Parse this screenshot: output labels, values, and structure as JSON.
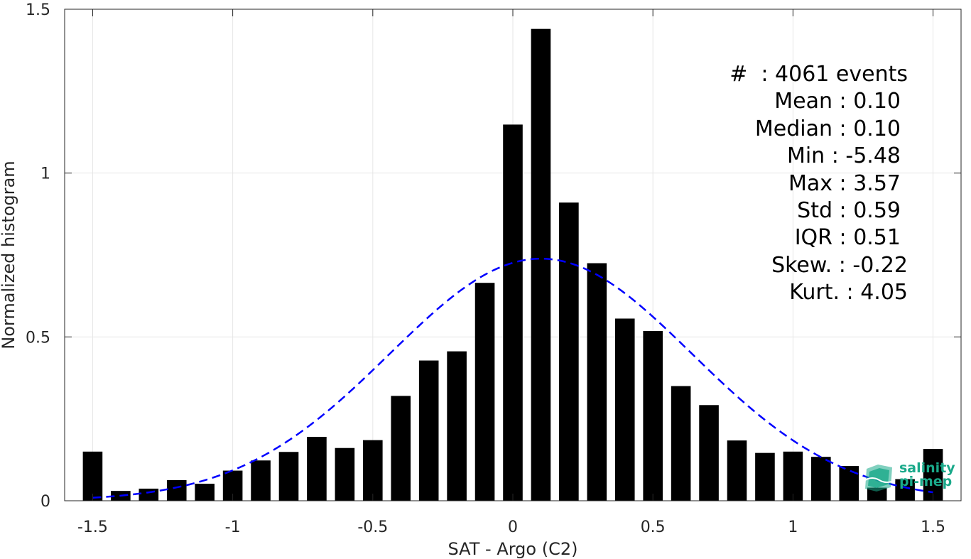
{
  "chart_data": {
    "type": "bar",
    "xlabel": "SAT - Argo (C2)",
    "ylabel": "Normalized histogram",
    "xlim": [
      -1.6,
      1.6
    ],
    "ylim": [
      0,
      1.5
    ],
    "xticks": [
      -1.5,
      -1,
      -0.5,
      0,
      0.5,
      1,
      1.5
    ],
    "xtick_labels": [
      "-1.5",
      "-1",
      "-0.5",
      "0",
      "0.5",
      "1",
      "1.5"
    ],
    "yticks": [
      0,
      0.5,
      1,
      1.5
    ],
    "ytick_labels": [
      "0",
      "0.5",
      "1",
      "1.5"
    ],
    "grid": true,
    "bar_width": 0.07,
    "bar_color": "#000000",
    "x": [
      -1.5,
      -1.4,
      -1.3,
      -1.2,
      -1.1,
      -1.0,
      -0.9,
      -0.8,
      -0.7,
      -0.6,
      -0.5,
      -0.4,
      -0.3,
      -0.2,
      -0.1,
      0.0,
      0.1,
      0.2,
      0.3,
      0.4,
      0.5,
      0.6,
      0.7,
      0.8,
      0.9,
      1.0,
      1.1,
      1.2,
      1.3,
      1.4,
      1.5
    ],
    "values": [
      0.15,
      0.03,
      0.037,
      0.063,
      0.052,
      0.092,
      0.123,
      0.149,
      0.195,
      0.161,
      0.185,
      0.32,
      0.428,
      0.456,
      0.665,
      1.148,
      1.44,
      0.91,
      0.725,
      0.556,
      0.518,
      0.35,
      0.292,
      0.184,
      0.146,
      0.15,
      0.134,
      0.106,
      0.04,
      0.066,
      0.158
    ],
    "fit": {
      "type": "gaussian",
      "mean": 0.1,
      "std": 0.54,
      "color": "#0000ff",
      "style": "dashed"
    },
    "annotation": [
      "#  : 4061 events",
      "Mean : 0.10",
      "Median : 0.10",
      "Min : -5.48",
      "Max : 3.57",
      "Std : 0.59",
      "IQR : 0.51",
      "Skew. : -0.22",
      "Kurt. : 4.05"
    ]
  },
  "logo": {
    "name": "salinity-pi-mep-logo",
    "line1": "salinity",
    "line2": "pi-mep",
    "color": "#1aa98a"
  }
}
